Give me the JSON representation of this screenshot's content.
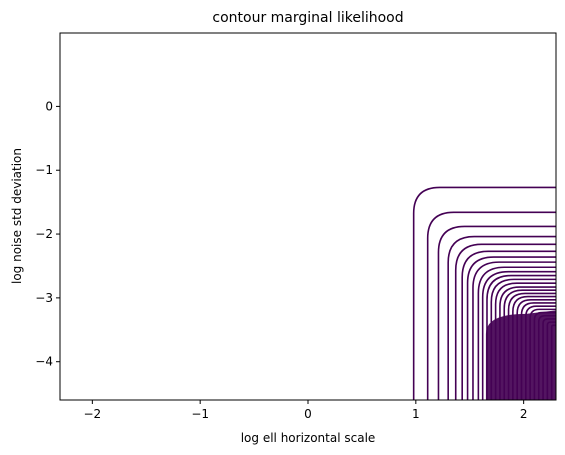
{
  "chart_data": {
    "type": "contour",
    "title": "contour marginal likelihood",
    "xlabel": "log ell horizontal scale",
    "ylabel": "log noise std deviation",
    "xlim": [
      -2.3,
      2.3
    ],
    "ylim": [
      -4.6,
      1.15
    ],
    "xticks": [
      {
        "value": -2,
        "label": "−2"
      },
      {
        "value": -1,
        "label": "−1"
      },
      {
        "value": 0,
        "label": "0"
      },
      {
        "value": 1,
        "label": "1"
      },
      {
        "value": 2,
        "label": "2"
      }
    ],
    "yticks": [
      {
        "value": 0,
        "label": "0"
      },
      {
        "value": -1,
        "label": "−1"
      },
      {
        "value": -2,
        "label": "−2"
      },
      {
        "value": -3,
        "label": "−3"
      },
      {
        "value": -4,
        "label": "−4"
      }
    ],
    "line_color": "#440154",
    "contours": [
      {
        "x_asymptote": 0.98,
        "y_asymptote": -1.27
      },
      {
        "x_asymptote": 1.11,
        "y_asymptote": -1.66
      },
      {
        "x_asymptote": 1.21,
        "y_asymptote": -1.88
      },
      {
        "x_asymptote": 1.3,
        "y_asymptote": -2.04
      },
      {
        "x_asymptote": 1.37,
        "y_asymptote": -2.16
      },
      {
        "x_asymptote": 1.43,
        "y_asymptote": -2.27
      },
      {
        "x_asymptote": 1.48,
        "y_asymptote": -2.36
      },
      {
        "x_asymptote": 1.53,
        "y_asymptote": -2.44
      },
      {
        "x_asymptote": 1.58,
        "y_asymptote": -2.52
      },
      {
        "x_asymptote": 1.62,
        "y_asymptote": -2.59
      },
      {
        "x_asymptote": 1.66,
        "y_asymptote": -2.65
      },
      {
        "x_asymptote": 1.7,
        "y_asymptote": -2.71
      },
      {
        "x_asymptote": 1.74,
        "y_asymptote": -2.77
      },
      {
        "x_asymptote": 1.78,
        "y_asymptote": -2.83
      },
      {
        "x_asymptote": 1.82,
        "y_asymptote": -2.88
      },
      {
        "x_asymptote": 1.86,
        "y_asymptote": -2.93
      },
      {
        "x_asymptote": 1.9,
        "y_asymptote": -2.98
      },
      {
        "x_asymptote": 1.94,
        "y_asymptote": -3.03
      },
      {
        "x_asymptote": 1.98,
        "y_asymptote": -3.08
      },
      {
        "x_asymptote": 2.02,
        "y_asymptote": -3.13
      },
      {
        "x_asymptote": 2.06,
        "y_asymptote": -3.18
      },
      {
        "x_asymptote": 2.1,
        "y_asymptote": -3.23
      },
      {
        "x_asymptote": 2.14,
        "y_asymptote": -3.28
      },
      {
        "x_asymptote": 2.18,
        "y_asymptote": -3.33
      },
      {
        "x_asymptote": 2.22,
        "y_asymptote": -3.38
      },
      {
        "x_asymptote": 2.26,
        "y_asymptote": -3.43
      }
    ],
    "filled_region": {
      "x_from": 1.65,
      "y_to": -3.25
    },
    "grid": false,
    "legend": "none"
  }
}
